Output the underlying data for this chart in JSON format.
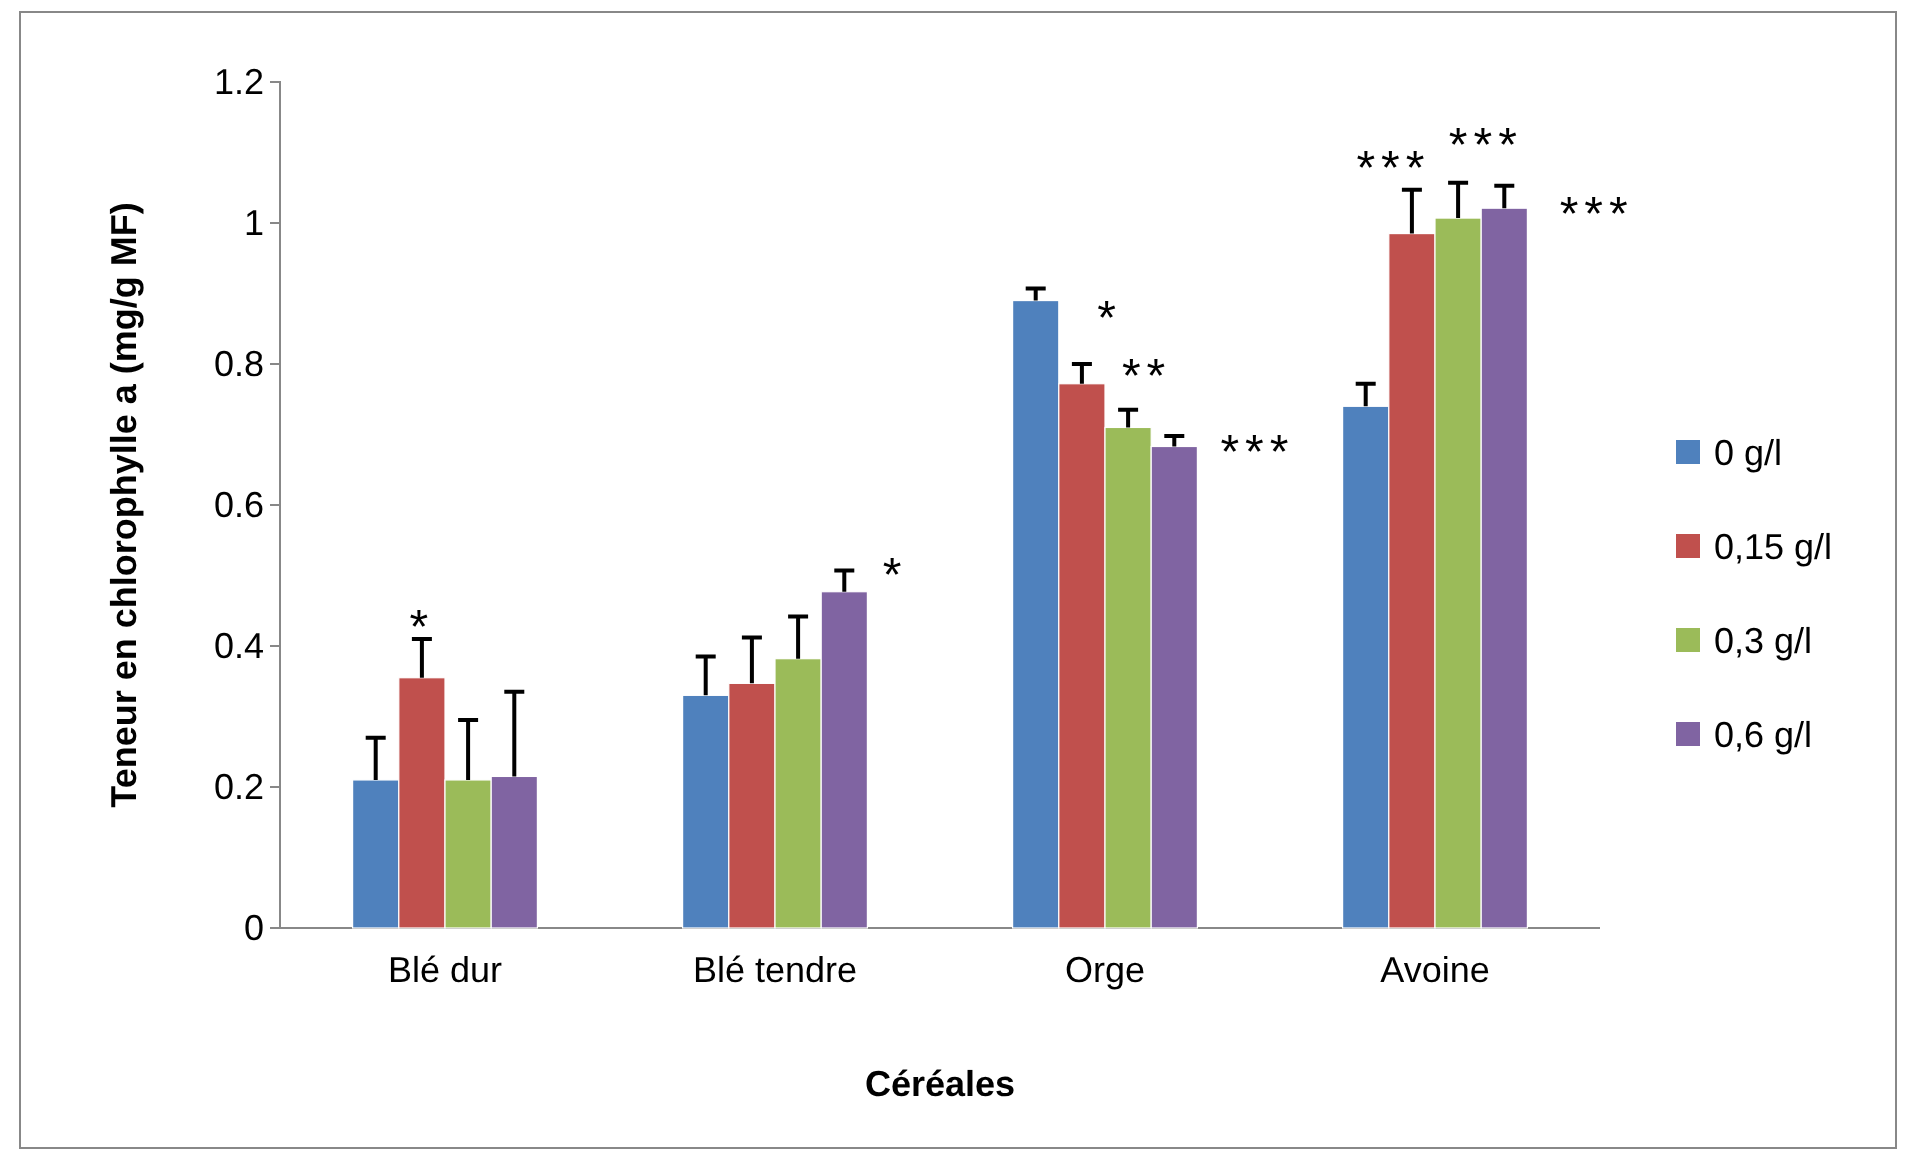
{
  "chart_data": {
    "type": "bar",
    "xlabel": "Céréales",
    "ylabel": "Teneur en chlorophylle a (mg/g MF)",
    "categories": [
      "Blé dur",
      "Blé tendre",
      "Orge",
      "Avoine"
    ],
    "series": [
      {
        "name": "0 g/l",
        "color": "#4f81bd",
        "values": [
          0.21,
          0.33,
          0.89,
          0.74
        ],
        "errors": [
          0.06,
          0.055,
          0.017,
          0.032
        ]
      },
      {
        "name": "0,15 g/l",
        "color": "#c0504d",
        "values": [
          0.355,
          0.347,
          0.772,
          0.985
        ],
        "errors": [
          0.055,
          0.065,
          0.028,
          0.062
        ]
      },
      {
        "name": "0,3 g/l",
        "color": "#9bbb59",
        "values": [
          0.21,
          0.382,
          0.71,
          1.007
        ],
        "errors": [
          0.085,
          0.06,
          0.025,
          0.05
        ]
      },
      {
        "name": "0,6 g/l",
        "color": "#8064a2",
        "values": [
          0.215,
          0.477,
          0.683,
          1.021
        ],
        "errors": [
          0.12,
          0.03,
          0.015,
          0.032
        ]
      }
    ],
    "annotations": [
      "*",
      "*",
      "*",
      "**",
      "***",
      "***",
      "***",
      "***"
    ],
    "ylim": [
      0,
      1.2
    ],
    "yticks": [
      0,
      0.2,
      0.4,
      0.6,
      0.8,
      1,
      1.2
    ],
    "grid": false,
    "legend": "right"
  }
}
